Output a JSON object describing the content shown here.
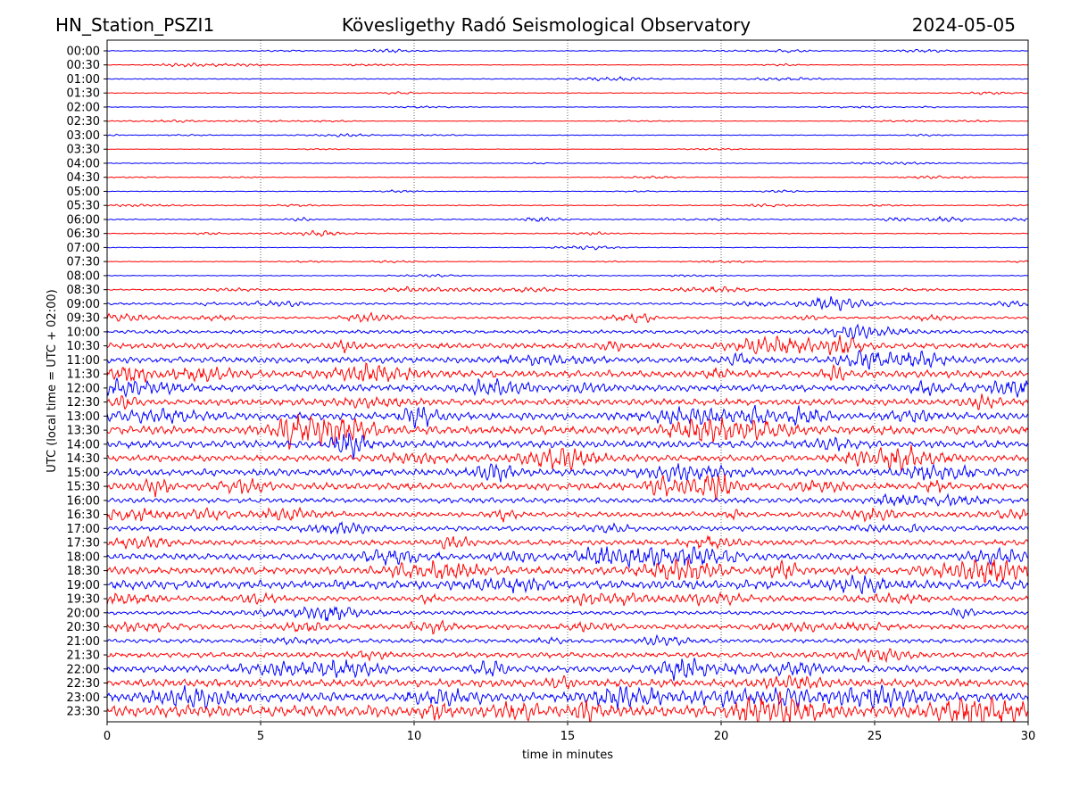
{
  "header": {
    "station": "HN_Station_PSZI1",
    "title": "Kövesligethy Radó Seismological Observatory",
    "date": "2024-05-05"
  },
  "chart_data": {
    "type": "line",
    "subtype": "helicorder",
    "xlabel": "time in minutes",
    "ylabel": "UTC (local time = UTC + 02:00)",
    "xlim": [
      0,
      30
    ],
    "xticks": [
      "0",
      "5",
      "10",
      "15",
      "20",
      "25",
      "30"
    ],
    "grid": "vertical dotted lines at 5-minute intervals",
    "colors": [
      "#0000ff",
      "#ff0000"
    ],
    "traces": [
      {
        "label": "00:00",
        "amp": 0.6
      },
      {
        "label": "00:30",
        "amp": 0.5
      },
      {
        "label": "01:00",
        "amp": 0.7
      },
      {
        "label": "01:30",
        "amp": 0.6
      },
      {
        "label": "02:00",
        "amp": 0.4
      },
      {
        "label": "02:30",
        "amp": 0.4
      },
      {
        "label": "03:00",
        "amp": 0.5
      },
      {
        "label": "03:30",
        "amp": 0.4
      },
      {
        "label": "04:00",
        "amp": 0.6
      },
      {
        "label": "04:30",
        "amp": 0.5
      },
      {
        "label": "05:00",
        "amp": 0.5
      },
      {
        "label": "05:30",
        "amp": 0.7
      },
      {
        "label": "06:00",
        "amp": 0.9
      },
      {
        "label": "06:30",
        "amp": 0.7
      },
      {
        "label": "07:00",
        "amp": 0.5
      },
      {
        "label": "07:30",
        "amp": 0.5
      },
      {
        "label": "08:00",
        "amp": 0.6
      },
      {
        "label": "08:30",
        "amp": 1.2
      },
      {
        "label": "09:00",
        "amp": 1.6
      },
      {
        "label": "09:30",
        "amp": 1.8
      },
      {
        "label": "10:00",
        "amp": 2.8
      },
      {
        "label": "10:30",
        "amp": 4.5
      },
      {
        "label": "11:00",
        "amp": 4.8
      },
      {
        "label": "11:30",
        "amp": 5.5
      },
      {
        "label": "12:00",
        "amp": 5.5
      },
      {
        "label": "12:30",
        "amp": 5.0
      },
      {
        "label": "13:00",
        "amp": 6.0
      },
      {
        "label": "13:30",
        "amp": 6.5
      },
      {
        "label": "14:00",
        "amp": 5.5
      },
      {
        "label": "14:30",
        "amp": 5.0
      },
      {
        "label": "15:00",
        "amp": 5.5
      },
      {
        "label": "15:30",
        "amp": 5.5
      },
      {
        "label": "16:00",
        "amp": 4.0
      },
      {
        "label": "16:30",
        "amp": 4.0
      },
      {
        "label": "17:00",
        "amp": 4.0
      },
      {
        "label": "17:30",
        "amp": 4.2
      },
      {
        "label": "18:00",
        "amp": 5.0
      },
      {
        "label": "18:30",
        "amp": 6.0
      },
      {
        "label": "19:00",
        "amp": 7.0
      },
      {
        "label": "19:30",
        "amp": 4.0
      },
      {
        "label": "20:00",
        "amp": 3.0
      },
      {
        "label": "20:30",
        "amp": 4.0
      },
      {
        "label": "21:00",
        "amp": 3.2
      },
      {
        "label": "21:30",
        "amp": 4.2
      },
      {
        "label": "22:00",
        "amp": 5.0
      },
      {
        "label": "22:30",
        "amp": 6.0
      },
      {
        "label": "23:00",
        "amp": 7.0
      },
      {
        "label": "23:30",
        "amp": 9.0
      }
    ]
  }
}
